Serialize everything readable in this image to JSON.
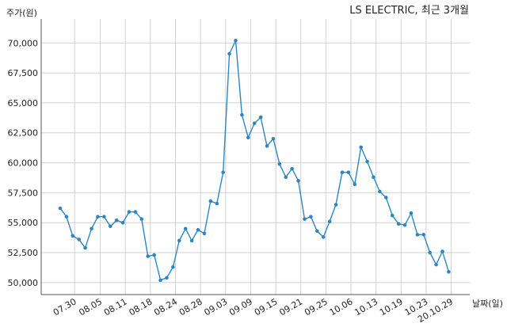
{
  "chart_data": {
    "type": "line",
    "title": "LS ELECTRIC, 최근 3개월",
    "ylabel": "주가(원)",
    "xlabel": "날짜(일)",
    "ylim": [
      49000,
      72000
    ],
    "y_ticks": [
      50000,
      52500,
      55000,
      57500,
      60000,
      62500,
      65000,
      67500,
      70000
    ],
    "y_tick_labels": [
      "50,000",
      "52,500",
      "55,000",
      "57,500",
      "60,000",
      "62,500",
      "65,000",
      "67,500",
      "70,000"
    ],
    "x_ticks": [
      {
        "index": 2.3,
        "label": "07.30"
      },
      {
        "index": 6.4,
        "label": "08.05"
      },
      {
        "index": 10.4,
        "label": "08.11"
      },
      {
        "index": 14.4,
        "label": "08.18"
      },
      {
        "index": 18.4,
        "label": "08.24"
      },
      {
        "index": 22.4,
        "label": "08.28"
      },
      {
        "index": 26.4,
        "label": "09.03"
      },
      {
        "index": 30.4,
        "label": "09.09"
      },
      {
        "index": 34.4,
        "label": "09.15"
      },
      {
        "index": 38.4,
        "label": "09.21"
      },
      {
        "index": 42.4,
        "label": "09.25"
      },
      {
        "index": 46.4,
        "label": "10.06"
      },
      {
        "index": 50.4,
        "label": "10.13"
      },
      {
        "index": 54.4,
        "label": "10.19"
      },
      {
        "index": 58.4,
        "label": "10.23"
      },
      {
        "index": 62.4,
        "label": "20.10.29"
      }
    ],
    "grid": true,
    "series": [
      {
        "values": [
          56200,
          55500,
          53900,
          53600,
          52900,
          54500,
          55500,
          55500,
          54700,
          55200,
          55000,
          55900,
          55900,
          55300,
          52200,
          52300,
          50200,
          50400,
          51300,
          53500,
          54500,
          53500,
          54400,
          54100,
          56800,
          56600,
          59200,
          69100,
          70200,
          64000,
          62100,
          63300,
          63800,
          61400,
          62000,
          59900,
          58800,
          59500,
          58500,
          55300,
          55500,
          54300,
          53800,
          55100,
          56500,
          59200,
          59200,
          58200,
          61300,
          60100,
          58800,
          57600,
          57100,
          55600,
          54900,
          54800,
          55800,
          54000,
          54000,
          52500,
          51500,
          52600,
          50900
        ],
        "color": "#2e86c1"
      }
    ]
  }
}
